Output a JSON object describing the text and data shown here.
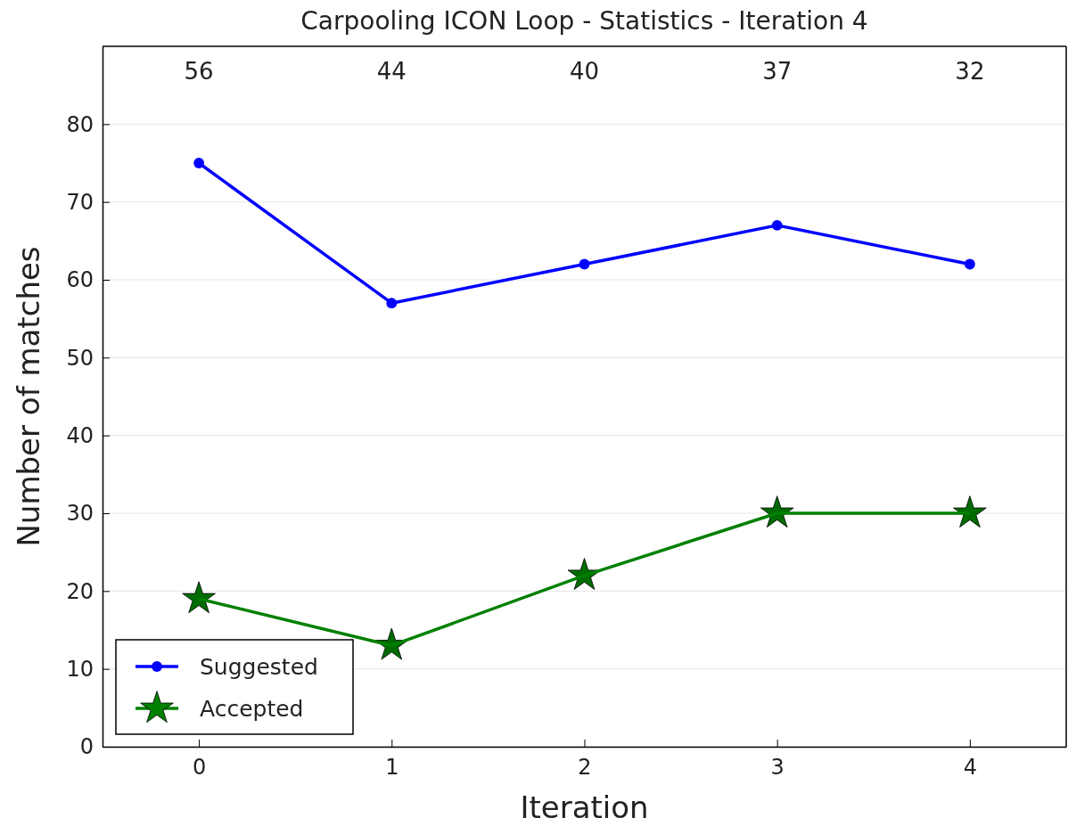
{
  "chart_data": {
    "type": "line",
    "title": "Carpooling ICON Loop - Statistics - Iteration 4",
    "xlabel": "Iteration",
    "ylabel": "Number of matches",
    "x": [
      0,
      1,
      2,
      3,
      4
    ],
    "xlim": [
      -0.5,
      4.5
    ],
    "xticks": [
      0,
      1,
      2,
      3,
      4
    ],
    "annotations": [
      "56",
      "44",
      "40",
      "37",
      "32"
    ],
    "ylim": [
      0,
      90
    ],
    "yticks": [
      0,
      10,
      20,
      30,
      40,
      50,
      60,
      70,
      80
    ],
    "grid": "y",
    "legend": "bottom left",
    "series": [
      {
        "name": "Suggested",
        "color": "#0000ff",
        "marker": "circle",
        "values": [
          75,
          57,
          62,
          67,
          62
        ]
      },
      {
        "name": "Accepted",
        "color": "#008000",
        "marker": "star",
        "values": [
          19,
          13,
          22,
          30,
          30
        ]
      }
    ]
  }
}
